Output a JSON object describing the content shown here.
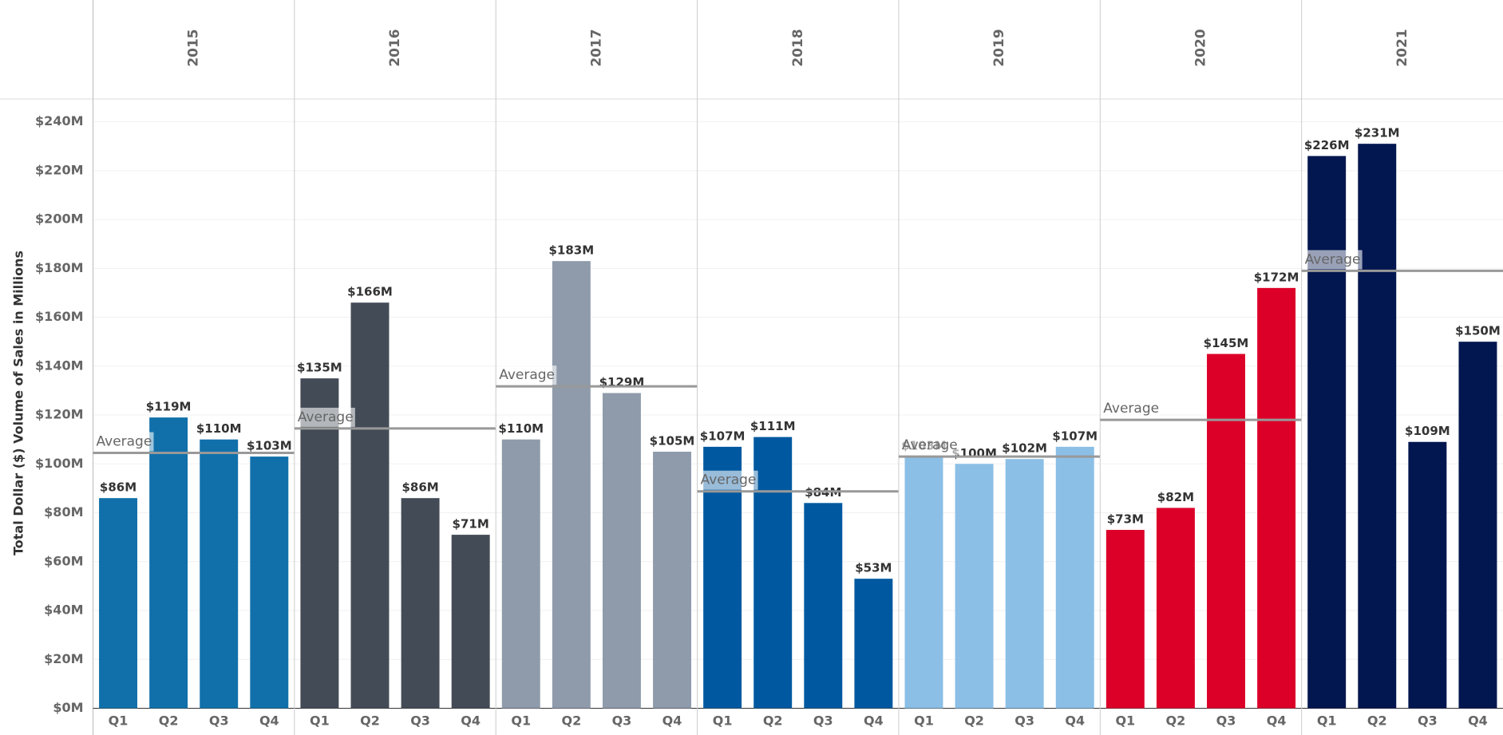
{
  "chart_data": {
    "type": "bar",
    "y_axis_label": "Total Dollar ($) Volume of Sales in Millions",
    "average_label": "Average",
    "categories": [
      "Q1",
      "Q2",
      "Q3",
      "Q4"
    ],
    "ylim": [
      0,
      250
    ],
    "yticks": [
      {
        "value": 0,
        "label": "$0M"
      },
      {
        "value": 20,
        "label": "$20M"
      },
      {
        "value": 40,
        "label": "$40M"
      },
      {
        "value": 60,
        "label": "$60M"
      },
      {
        "value": 80,
        "label": "$80M"
      },
      {
        "value": 100,
        "label": "$100M"
      },
      {
        "value": 120,
        "label": "$120M"
      },
      {
        "value": 140,
        "label": "$140M"
      },
      {
        "value": 160,
        "label": "$160M"
      },
      {
        "value": 180,
        "label": "$180M"
      },
      {
        "value": 200,
        "label": "$200M"
      },
      {
        "value": 220,
        "label": "$220M"
      },
      {
        "value": 240,
        "label": "$240M"
      }
    ],
    "grid": true,
    "panels": [
      {
        "name": "2015",
        "color": "#1170aa",
        "values": [
          86,
          119,
          110,
          103
        ],
        "value_labels": [
          "$86M",
          "$119M",
          "$110M",
          "$103M"
        ],
        "average": 104.5
      },
      {
        "name": "2016",
        "color": "#434b56",
        "values": [
          135,
          166,
          86,
          71
        ],
        "value_labels": [
          "$135M",
          "$166M",
          "$86M",
          "$71M"
        ],
        "average": 114.5
      },
      {
        "name": "2017",
        "color": "#8f9bab",
        "values": [
          110,
          183,
          129,
          105
        ],
        "value_labels": [
          "$110M",
          "$183M",
          "$129M",
          "$105M"
        ],
        "average": 131.75
      },
      {
        "name": "2018",
        "color": "#0059a0",
        "values": [
          107,
          111,
          84,
          53
        ],
        "value_labels": [
          "$107M",
          "$111M",
          "$84M",
          "$53M"
        ],
        "average": 88.75
      },
      {
        "name": "2019",
        "color": "#8bbfe6",
        "values": [
          103,
          100,
          102,
          107
        ],
        "value_labels": [
          "$103M",
          "$100M",
          "$102M",
          "$107M"
        ],
        "average": 103
      },
      {
        "name": "2020",
        "color": "#dc0029",
        "values": [
          73,
          82,
          145,
          172
        ],
        "value_labels": [
          "$73M",
          "$82M",
          "$145M",
          "$172M"
        ],
        "average": 118
      },
      {
        "name": "2021",
        "color": "#02164f",
        "values": [
          226,
          231,
          109,
          150
        ],
        "value_labels": [
          "$226M",
          "$231M",
          "$109M",
          "$150M"
        ],
        "average": 179
      }
    ]
  }
}
